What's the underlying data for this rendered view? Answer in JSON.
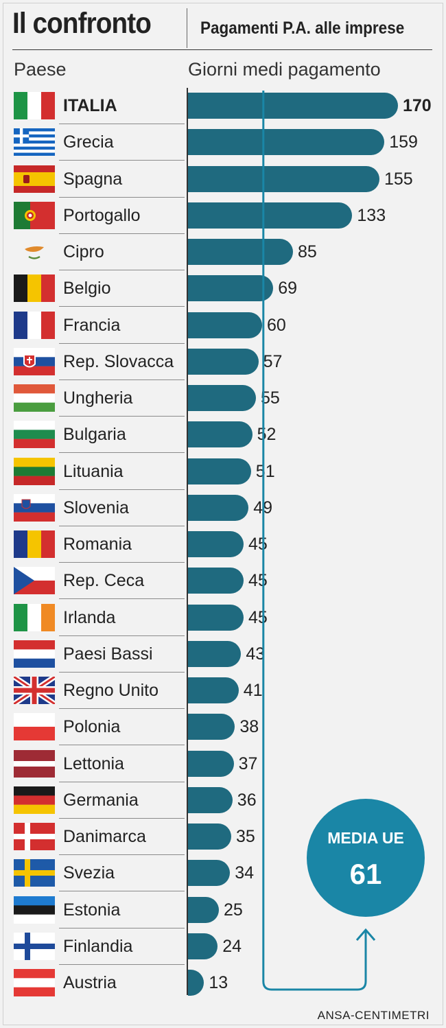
{
  "header": {
    "title": "Il confronto",
    "subtitle": "Pagamenti P.A. alle imprese",
    "col_country": "Paese",
    "col_days": "Giorni medi pagamento"
  },
  "average": {
    "label": "MEDIA UE",
    "value": "61"
  },
  "source": "ANSA-CENTIMETRI",
  "colors": {
    "bar": "#1f6a7f",
    "circle": "#1a86a6",
    "connector": "#1a86a6"
  },
  "chart_data": {
    "type": "bar",
    "orientation": "horizontal",
    "title": "Il confronto",
    "subtitle": "Pagamenti P.A. alle imprese",
    "xlabel": "Giorni medi pagamento",
    "ylabel": "Paese",
    "grid": false,
    "categories": [
      "ITALIA",
      "Grecia",
      "Spagna",
      "Portogallo",
      "Cipro",
      "Belgio",
      "Francia",
      "Rep. Slovacca",
      "Ungheria",
      "Bulgaria",
      "Lituania",
      "Slovenia",
      "Romania",
      "Rep. Ceca",
      "Irlanda",
      "Paesi Bassi",
      "Regno Unito",
      "Polonia",
      "Lettonia",
      "Germania",
      "Danimarca",
      "Svezia",
      "Estonia",
      "Finlandia",
      "Austria"
    ],
    "values": [
      170,
      159,
      155,
      133,
      85,
      69,
      60,
      57,
      55,
      52,
      51,
      49,
      45,
      45,
      45,
      43,
      41,
      38,
      37,
      36,
      35,
      34,
      25,
      24,
      13
    ],
    "xlim": [
      0,
      170
    ],
    "reference": {
      "label": "MEDIA UE",
      "value": 61
    },
    "flags": [
      "italy-flag-icon",
      "greece-flag-icon",
      "spain-flag-icon",
      "portugal-flag-icon",
      "cyprus-flag-icon",
      "belgium-flag-icon",
      "france-flag-icon",
      "slovakia-flag-icon",
      "hungary-flag-icon",
      "bulgaria-flag-icon",
      "lithuania-flag-icon",
      "slovenia-flag-icon",
      "romania-flag-icon",
      "czech-republic-flag-icon",
      "ireland-flag-icon",
      "netherlands-flag-icon",
      "united-kingdom-flag-icon",
      "poland-flag-icon",
      "latvia-flag-icon",
      "germany-flag-icon",
      "denmark-flag-icon",
      "sweden-flag-icon",
      "estonia-flag-icon",
      "finland-flag-icon",
      "austria-flag-icon"
    ]
  }
}
